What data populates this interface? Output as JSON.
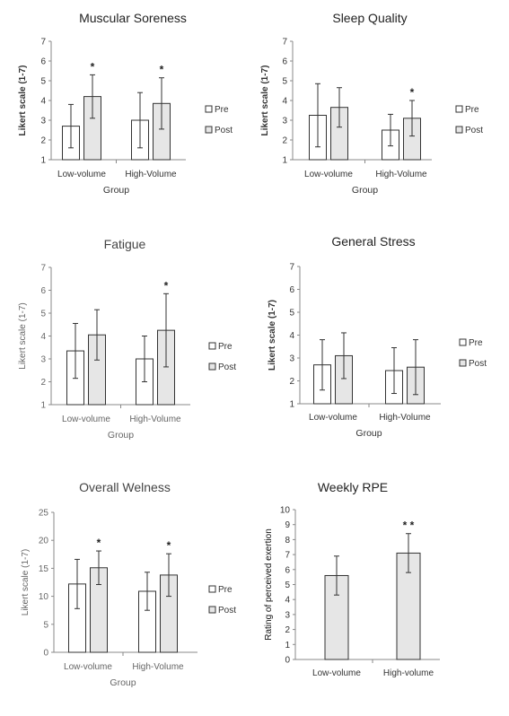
{
  "chart_data": [
    {
      "type": "bar",
      "title": "Muscular Soreness",
      "xlabel": "Group",
      "ylabel": "Likert scale (1-7)",
      "ylim": [
        1,
        7
      ],
      "yticks": [
        1,
        2,
        3,
        4,
        5,
        6,
        7
      ],
      "categories": [
        "Low-volume",
        "High-Volume"
      ],
      "series": [
        {
          "name": "Pre",
          "color": "#ffffff",
          "values": [
            2.7,
            3.0
          ],
          "errors": [
            1.1,
            1.4
          ]
        },
        {
          "name": "Post",
          "color": "#e6e6e6",
          "values": [
            4.2,
            3.85
          ],
          "errors": [
            1.1,
            1.3
          ]
        }
      ],
      "annotations": [
        {
          "category": 0,
          "series": 1,
          "text": "*"
        },
        {
          "category": 1,
          "series": 1,
          "text": "*"
        }
      ],
      "legend": "right",
      "grid": false
    },
    {
      "type": "bar",
      "title": "Sleep Quality",
      "xlabel": "Group",
      "ylabel": "Likert scale (1-7)",
      "ylim": [
        1,
        7
      ],
      "yticks": [
        1,
        2,
        3,
        4,
        5,
        6,
        7
      ],
      "categories": [
        "Low-volume",
        "High-Volume"
      ],
      "series": [
        {
          "name": "Pre",
          "color": "#ffffff",
          "values": [
            3.25,
            2.5
          ],
          "errors": [
            1.6,
            0.8
          ]
        },
        {
          "name": "Post",
          "color": "#e6e6e6",
          "values": [
            3.65,
            3.1
          ],
          "errors": [
            1.0,
            0.9
          ]
        }
      ],
      "annotations": [
        {
          "category": 1,
          "series": 1,
          "text": "*"
        }
      ],
      "legend": "right",
      "grid": false
    },
    {
      "type": "bar",
      "title": "Fatigue",
      "xlabel": "Group",
      "ylabel": "Likert scale (1-7)",
      "ylim": [
        1,
        7
      ],
      "yticks": [
        1,
        2,
        3,
        4,
        5,
        6,
        7
      ],
      "categories": [
        "Low-volume",
        "High-Volume"
      ],
      "series": [
        {
          "name": "Pre",
          "color": "#ffffff",
          "values": [
            3.35,
            3.0
          ],
          "errors": [
            1.2,
            1.0
          ]
        },
        {
          "name": "Post",
          "color": "#e6e6e6",
          "values": [
            4.05,
            4.25
          ],
          "errors": [
            1.1,
            1.6
          ]
        }
      ],
      "annotations": [
        {
          "category": 1,
          "series": 1,
          "text": "*"
        }
      ],
      "legend": "right",
      "grid": false
    },
    {
      "type": "bar",
      "title": "General Stress",
      "xlabel": "Group",
      "ylabel": "Likert scale (1-7)",
      "ylim": [
        1,
        7
      ],
      "yticks": [
        1,
        2,
        3,
        4,
        5,
        6,
        7
      ],
      "categories": [
        "Low-volume",
        "High-Volume"
      ],
      "series": [
        {
          "name": "Pre",
          "color": "#ffffff",
          "values": [
            2.7,
            2.45
          ],
          "errors": [
            1.1,
            1.0
          ]
        },
        {
          "name": "Post",
          "color": "#e6e6e6",
          "values": [
            3.1,
            2.6
          ],
          "errors": [
            1.0,
            1.2
          ]
        }
      ],
      "annotations": [],
      "legend": "right",
      "grid": false
    },
    {
      "type": "bar",
      "title": "Overall Welness",
      "xlabel": "Group",
      "ylabel": "Likert scale (1-7)",
      "ylim": [
        0,
        25
      ],
      "yticks": [
        0,
        5,
        10,
        15,
        20,
        25
      ],
      "categories": [
        "Low-volume",
        "High-Volume"
      ],
      "series": [
        {
          "name": "Pre",
          "color": "#ffffff",
          "values": [
            12.2,
            10.9
          ],
          "errors": [
            4.4,
            3.4
          ]
        },
        {
          "name": "Post",
          "color": "#e6e6e6",
          "values": [
            15.1,
            13.8
          ],
          "errors": [
            3.0,
            3.8
          ]
        }
      ],
      "annotations": [
        {
          "category": 0,
          "series": 1,
          "text": "*"
        },
        {
          "category": 1,
          "series": 1,
          "text": "*"
        }
      ],
      "legend": "right",
      "grid": false
    },
    {
      "type": "bar",
      "title": "Weekly RPE",
      "xlabel": "",
      "ylabel": "Rating of perceived exertion",
      "ylim": [
        0,
        10
      ],
      "yticks": [
        0,
        1,
        2,
        3,
        4,
        5,
        6,
        7,
        8,
        9,
        10
      ],
      "categories": [
        "Low-volume",
        "High-volume"
      ],
      "series": [
        {
          "color": "#e6e6e6",
          "values": [
            5.6,
            7.1
          ],
          "errors": [
            1.3,
            1.3
          ]
        }
      ],
      "annotations": [
        {
          "category": 1,
          "series": 0,
          "text": "* *"
        }
      ],
      "legend": "none",
      "grid": false
    }
  ]
}
